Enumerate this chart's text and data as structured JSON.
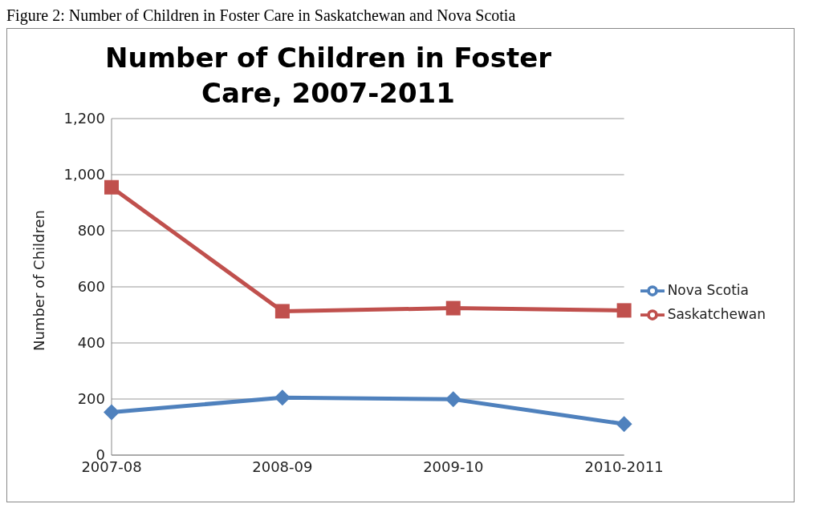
{
  "chart_data": {
    "type": "line",
    "title": "Number of Children in Foster Care, 2007-2011",
    "ylabel": "Number of Children",
    "annotations": [
      "Figure 2: Number of Children in Foster Care in Saskatchewan and Nova Scotia"
    ],
    "categories": [
      "2007-08",
      "2008-09",
      "2009-10",
      "2010-2011"
    ],
    "series": [
      {
        "name": "Saskatchewan",
        "color": "#c0504d",
        "marker": "square",
        "values": [
          955,
          513,
          524,
          516
        ]
      },
      {
        "name": "Nova Scotia",
        "color": "#4f81bd",
        "marker": "diamond",
        "values": [
          153,
          205,
          199,
          111
        ]
      }
    ],
    "ylim": [
      0,
      1200
    ],
    "yticks": [
      {
        "value": 0,
        "label": "0"
      },
      {
        "value": 200,
        "label": "200"
      },
      {
        "value": 400,
        "label": "400"
      },
      {
        "value": 600,
        "label": "600"
      },
      {
        "value": 800,
        "label": "800"
      },
      {
        "value": 1000,
        "label": "1,000"
      },
      {
        "value": 1200,
        "label": "1,200"
      }
    ],
    "grid": "y",
    "legend": "right"
  }
}
